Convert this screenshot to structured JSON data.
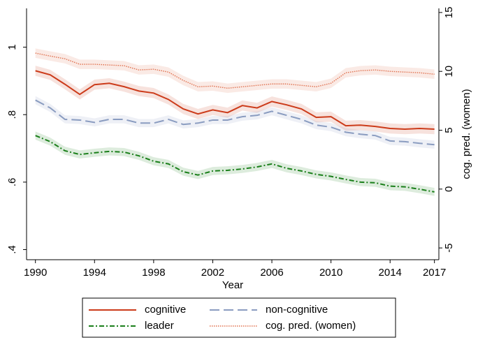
{
  "chart_data": {
    "type": "line",
    "x_label": "Year",
    "y2_label": "cog. pred. (women)",
    "x": [
      1990,
      1991,
      1992,
      1993,
      1994,
      1995,
      1996,
      1997,
      1998,
      1999,
      2000,
      2001,
      2002,
      2003,
      2004,
      2005,
      2006,
      2007,
      2008,
      2009,
      2010,
      2011,
      2012,
      2013,
      2014,
      2015,
      2016,
      2017
    ],
    "xlim": [
      1989.4,
      2017.3
    ],
    "xticks": [
      1990,
      1994,
      1998,
      2002,
      2006,
      2010,
      2014,
      2017
    ],
    "ylim": [
      0.37,
      1.115
    ],
    "yticks": [
      {
        "value": 0.4,
        "label": ".4"
      },
      {
        "value": 0.6,
        "label": ".6"
      },
      {
        "value": 0.8,
        "label": ".8"
      },
      1
    ],
    "y2lim": [
      -6.0,
      15.35
    ],
    "y2ticks": [
      -5,
      0,
      5,
      10,
      15
    ],
    "grid": false,
    "legend": "bottom",
    "series": [
      {
        "name": "cognitive",
        "color": "#cc3b1a",
        "dash": "solid",
        "band": 0.015,
        "values": [
          0.93,
          0.918,
          0.89,
          0.86,
          0.889,
          0.893,
          0.883,
          0.87,
          0.864,
          0.845,
          0.817,
          0.802,
          0.814,
          0.806,
          0.827,
          0.82,
          0.839,
          0.829,
          0.817,
          0.792,
          0.794,
          0.767,
          0.769,
          0.765,
          0.759,
          0.757,
          0.759,
          0.757
        ]
      },
      {
        "name": "non-cognitive",
        "color": "#8a9cc0",
        "dash": "dashed",
        "band": 0.012,
        "values": [
          0.843,
          0.82,
          0.786,
          0.784,
          0.777,
          0.786,
          0.786,
          0.775,
          0.775,
          0.786,
          0.771,
          0.775,
          0.784,
          0.784,
          0.794,
          0.798,
          0.81,
          0.798,
          0.786,
          0.769,
          0.763,
          0.748,
          0.742,
          0.738,
          0.722,
          0.72,
          0.715,
          0.711
        ]
      },
      {
        "name": "leader",
        "color": "#1a7f1a",
        "dash": "dashdot",
        "band": 0.012,
        "values": [
          0.738,
          0.72,
          0.693,
          0.682,
          0.687,
          0.691,
          0.689,
          0.678,
          0.662,
          0.654,
          0.631,
          0.621,
          0.633,
          0.635,
          0.639,
          0.645,
          0.654,
          0.641,
          0.633,
          0.623,
          0.617,
          0.608,
          0.6,
          0.598,
          0.588,
          0.586,
          0.579,
          0.571
        ]
      },
      {
        "name": "cog. pred. (women)",
        "color": "#e0714f",
        "dash": "dotted",
        "band": 0.4,
        "axis": "y2",
        "values": [
          11.55,
          11.3,
          11.07,
          10.6,
          10.6,
          10.54,
          10.48,
          10.12,
          10.18,
          9.94,
          9.23,
          8.69,
          8.75,
          8.57,
          8.69,
          8.81,
          8.93,
          8.93,
          8.81,
          8.69,
          8.99,
          9.88,
          10.06,
          10.12,
          10.0,
          9.94,
          9.88,
          9.76
        ]
      }
    ]
  }
}
